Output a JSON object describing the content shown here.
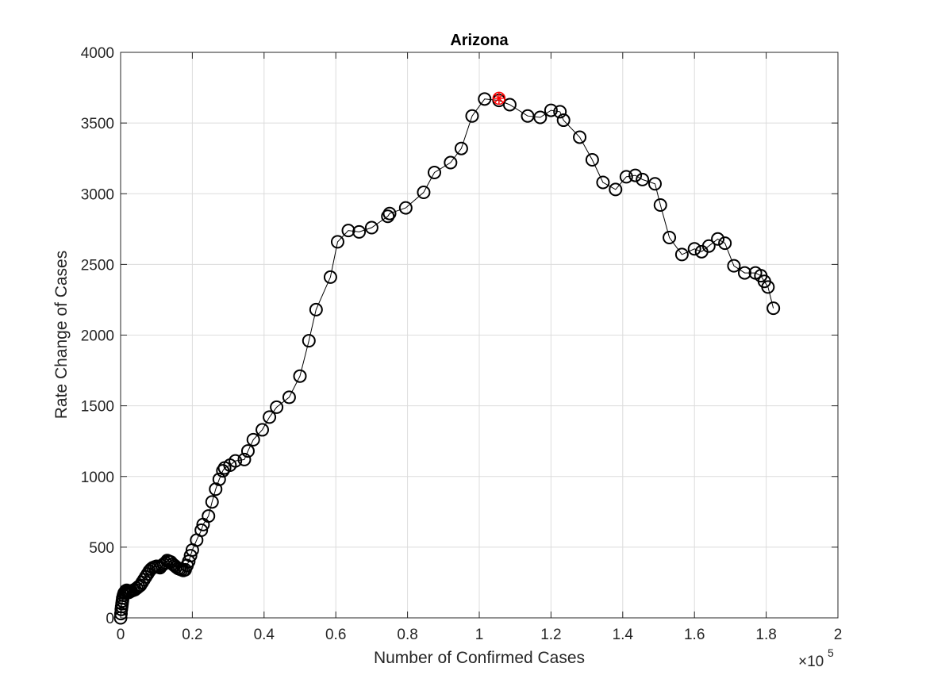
{
  "chart_data": {
    "type": "scatter",
    "title": "Arizona",
    "xlabel": "Number of Confirmed Cases",
    "ylabel": "Rate Change of Cases",
    "x_exponent_label": "×10",
    "x_exponent_power": "5",
    "x_scale": 100000,
    "xlim": [
      0,
      2
    ],
    "ylim": [
      0,
      4000
    ],
    "x_ticks": [
      "0",
      "0.2",
      "0.4",
      "0.6",
      "0.8",
      "1",
      "1.2",
      "1.4",
      "1.6",
      "1.8",
      "2"
    ],
    "y_ticks": [
      "0",
      "500",
      "1000",
      "1500",
      "2000",
      "2500",
      "3000",
      "3500",
      "4000"
    ],
    "grid": true,
    "legend": "none",
    "series": [
      {
        "marker": "circle",
        "color": "#000000",
        "line": true,
        "x": [
          0.0,
          0.001,
          0.002,
          0.003,
          0.004,
          0.005,
          0.006,
          0.008,
          0.01,
          0.012,
          0.014,
          0.017,
          0.02,
          0.023,
          0.026,
          0.03,
          0.035,
          0.04,
          0.045,
          0.05,
          0.055,
          0.06,
          0.065,
          0.07,
          0.075,
          0.08,
          0.085,
          0.09,
          0.095,
          0.1,
          0.105,
          0.11,
          0.115,
          0.12,
          0.125,
          0.13,
          0.135,
          0.14,
          0.145,
          0.15,
          0.155,
          0.16,
          0.165,
          0.17,
          0.175,
          0.18,
          0.185,
          0.19,
          0.195,
          0.2,
          0.212,
          0.225,
          0.23,
          0.245,
          0.255,
          0.265,
          0.275,
          0.285,
          0.29,
          0.305,
          0.32,
          0.345,
          0.355,
          0.37,
          0.395,
          0.415,
          0.435,
          0.47,
          0.5,
          0.525,
          0.545,
          0.585,
          0.605,
          0.635,
          0.665,
          0.7,
          0.745,
          0.75,
          0.795,
          0.845,
          0.875,
          0.92,
          0.95,
          0.98,
          1.015,
          1.055,
          1.085,
          1.135,
          1.17,
          1.2,
          1.225,
          1.235,
          1.28,
          1.315,
          1.345,
          1.38,
          1.41,
          1.435,
          1.455,
          1.49,
          1.505,
          1.53,
          1.565,
          1.6,
          1.62,
          1.64,
          1.665,
          1.685,
          1.71,
          1.74,
          1.77,
          1.785,
          1.795,
          1.805,
          1.82
        ],
        "y": [
          0,
          30,
          60,
          80,
          100,
          120,
          140,
          160,
          175,
          180,
          190,
          195,
          185,
          180,
          185,
          190,
          195,
          200,
          210,
          220,
          230,
          250,
          270,
          290,
          310,
          330,
          345,
          355,
          360,
          365,
          360,
          355,
          370,
          380,
          390,
          405,
          400,
          395,
          380,
          370,
          360,
          350,
          345,
          340,
          335,
          340,
          370,
          400,
          440,
          480,
          550,
          620,
          660,
          720,
          820,
          910,
          980,
          1040,
          1060,
          1080,
          1110,
          1120,
          1180,
          1260,
          1330,
          1420,
          1490,
          1560,
          1710,
          1960,
          2180,
          2410,
          2660,
          2740,
          2730,
          2760,
          2840,
          2860,
          2900,
          3010,
          3150,
          3220,
          3320,
          3550,
          3670,
          3660,
          3630,
          3550,
          3540,
          3590,
          3580,
          3520,
          3400,
          3240,
          3080,
          3030,
          3120,
          3130,
          3100,
          3070,
          2920,
          2690,
          2570,
          2610,
          2590,
          2630,
          2680,
          2650,
          2490,
          2440,
          2440,
          2420,
          2380,
          2340,
          2190
        ]
      }
    ],
    "highlight": {
      "x": 1.055,
      "y": 3675,
      "color": "#ff0000",
      "marker": "asterisk-circle"
    }
  }
}
